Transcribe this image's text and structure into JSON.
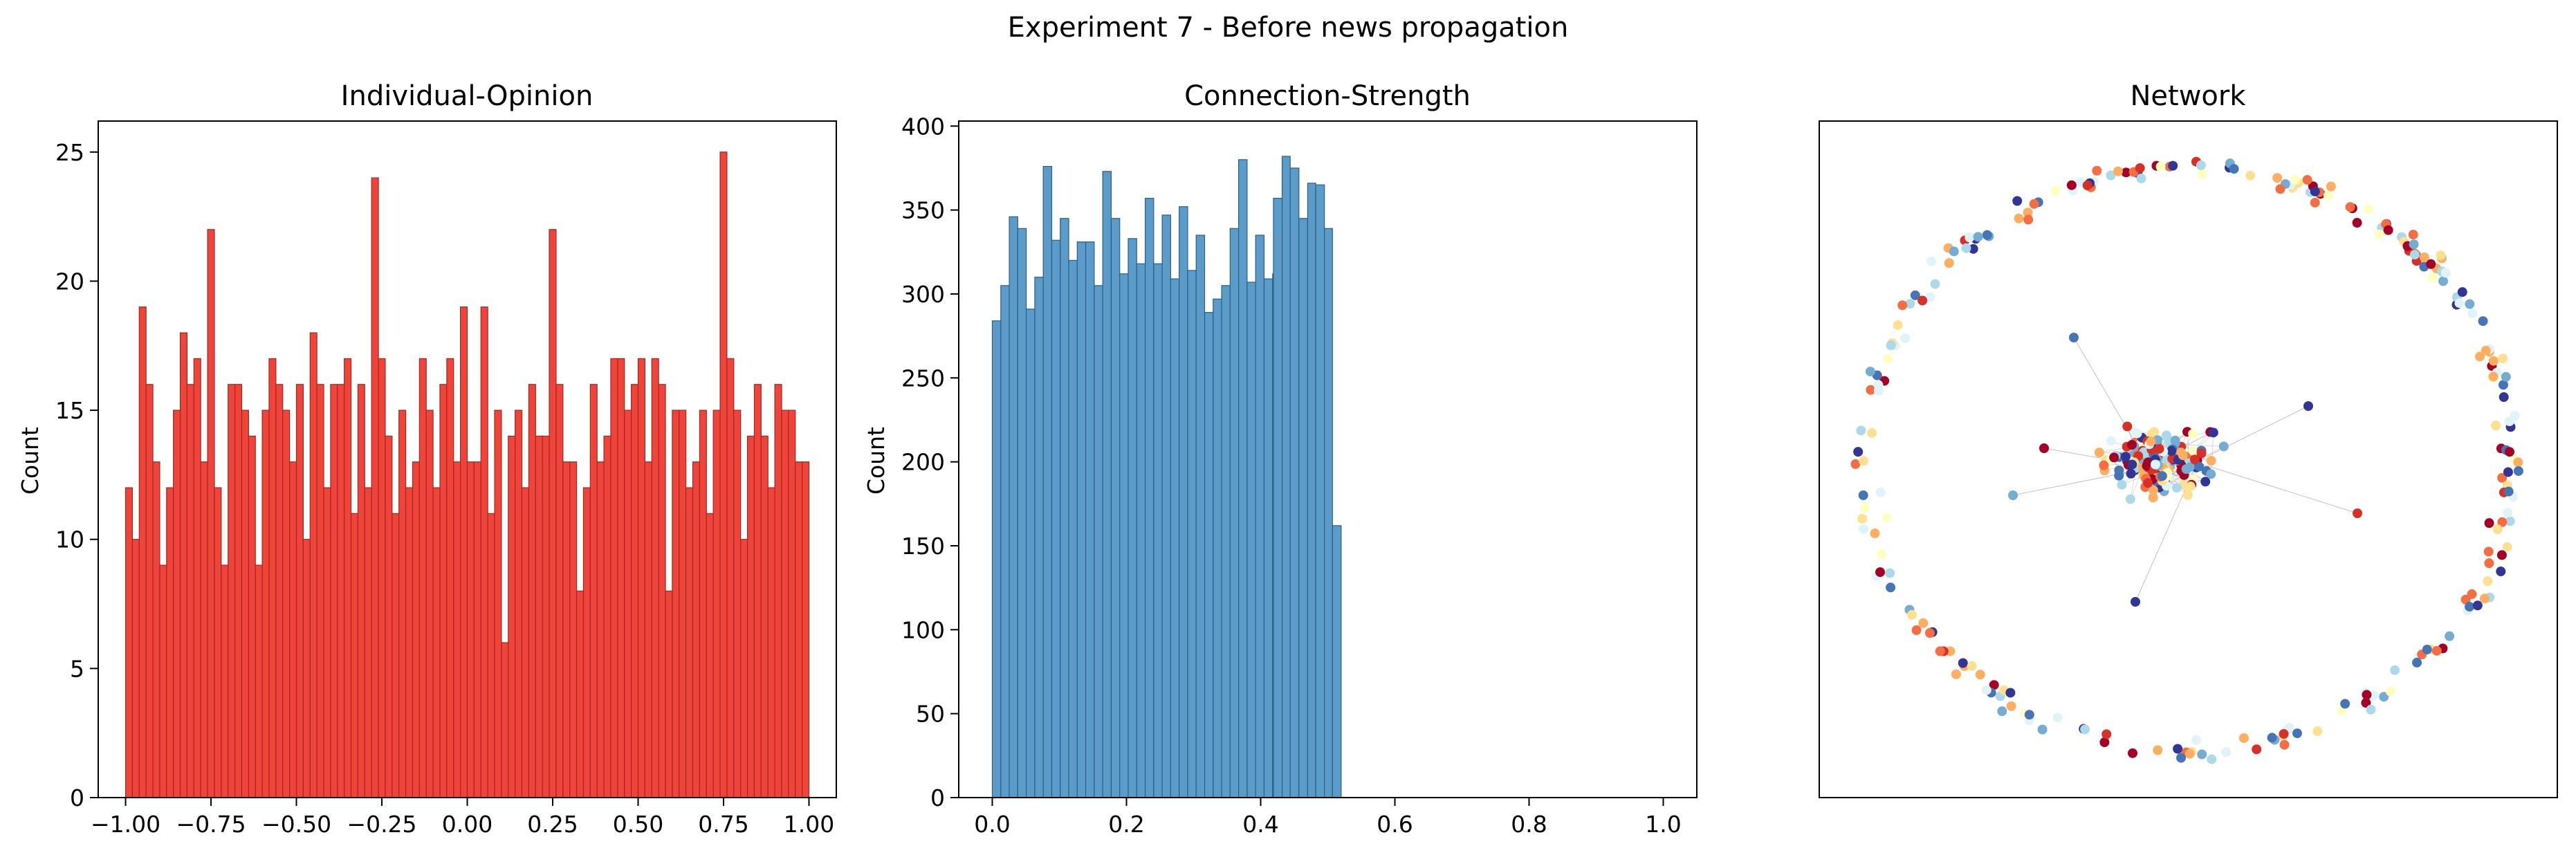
{
  "figure": {
    "suptitle": "Experiment 7 - Before news propagation"
  },
  "chart_data": [
    {
      "type": "bar",
      "title": "Individual-Opinion",
      "xlabel": "",
      "ylabel": "Count",
      "xlim": [
        -1.08,
        1.08
      ],
      "ylim": [
        0,
        26.2
      ],
      "bins": 100,
      "bin_start": -1.0,
      "bin_width": 0.02,
      "values": [
        12,
        10,
        19,
        16,
        13,
        9,
        12,
        15,
        18,
        16,
        17,
        13,
        22,
        12,
        9,
        16,
        16,
        15,
        14,
        9,
        15,
        17,
        16,
        15,
        13,
        16,
        10,
        18,
        16,
        12,
        16,
        16,
        17,
        11,
        16,
        12,
        24,
        17,
        14,
        11,
        15,
        12,
        13,
        17,
        15,
        12,
        16,
        17,
        13,
        19,
        13,
        13,
        19,
        11,
        15,
        6,
        14,
        15,
        12,
        16,
        14,
        14,
        22,
        16,
        13,
        13,
        8,
        12,
        16,
        13,
        14,
        17,
        17,
        15,
        16,
        17,
        13,
        17,
        16,
        8,
        15,
        15,
        12,
        13,
        15,
        11,
        15,
        25,
        17,
        15,
        10,
        14,
        16,
        14,
        12,
        16,
        15,
        15,
        13,
        13
      ],
      "bar_color": "#f0443a",
      "edge_color": "#9c2a25",
      "xticks": [
        -1.0,
        -0.75,
        -0.5,
        -0.25,
        0.0,
        0.25,
        0.5,
        0.75,
        1.0
      ],
      "xtick_labels": [
        "−1.00",
        "−0.75",
        "−0.50",
        "−0.25",
        "0.00",
        "0.25",
        "0.50",
        "0.75",
        "1.00"
      ],
      "yticks": [
        0,
        5,
        10,
        15,
        20,
        25
      ],
      "ytick_labels": [
        "0",
        "5",
        "10",
        "15",
        "20",
        "25"
      ]
    },
    {
      "type": "bar",
      "title": "Connection-Strength",
      "xlabel": "",
      "ylabel": "Count",
      "xlim": [
        -0.05,
        1.05
      ],
      "ylim": [
        0,
        403
      ],
      "bins": 40,
      "bin_start": 0.0,
      "bin_width": 0.01266,
      "values": [
        284,
        305,
        346,
        339,
        291,
        310,
        376,
        332,
        345,
        320,
        331,
        331,
        305,
        373,
        345,
        312,
        333,
        318,
        357,
        318,
        347,
        309,
        352,
        314,
        335,
        289,
        297,
        305,
        339,
        380,
        307,
        335,
        309,
        312,
        340,
        328,
        309,
        336,
        346,
        329
      ],
      "extra_bars": [
        {
          "x0": 0.419,
          "x1": 0.432,
          "value": 357
        },
        {
          "x0": 0.432,
          "x1": 0.444,
          "value": 382
        },
        {
          "x0": 0.444,
          "x1": 0.457,
          "value": 375
        },
        {
          "x0": 0.457,
          "x1": 0.47,
          "value": 345
        },
        {
          "x0": 0.47,
          "x1": 0.482,
          "value": 366
        },
        {
          "x0": 0.482,
          "x1": 0.495,
          "value": 365
        },
        {
          "x0": 0.495,
          "x1": 0.507,
          "value": 339
        },
        {
          "x0": 0.507,
          "x1": 0.52,
          "value": 162
        }
      ],
      "bar_color": "#5b9bc9",
      "edge_color": "#2f5f82",
      "xticks": [
        0.0,
        0.2,
        0.4,
        0.6,
        0.8,
        1.0
      ],
      "xtick_labels": [
        "0.0",
        "0.2",
        "0.4",
        "0.6",
        "0.8",
        "1.0"
      ],
      "yticks": [
        0,
        50,
        100,
        150,
        200,
        250,
        300,
        350,
        400
      ],
      "ytick_labels": [
        "0",
        "50",
        "100",
        "150",
        "200",
        "250",
        "300",
        "350",
        "400"
      ]
    },
    {
      "type": "network",
      "title": "Network",
      "node_count": 430,
      "ring_node_count": 250,
      "cluster_node_count": 180,
      "palette": [
        "#a50026",
        "#d73027",
        "#f46d43",
        "#fdae61",
        "#fee090",
        "#ffffbf",
        "#e0f3f8",
        "#abd9e9",
        "#74add1",
        "#4575b4",
        "#313695"
      ],
      "edge_color": "#9a9a9a"
    }
  ]
}
